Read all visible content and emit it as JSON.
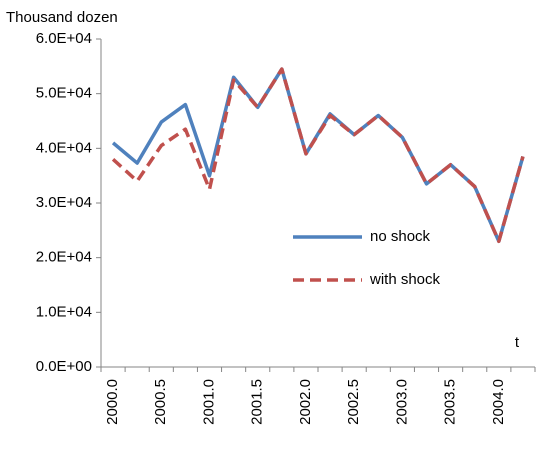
{
  "chart_data": {
    "type": "line",
    "y_label": "Thousand dozen",
    "x_label": "t",
    "categories": [
      "2000.0",
      null,
      "2000.5",
      null,
      "2001.0",
      null,
      "2001.5",
      null,
      "2002.0",
      null,
      "2002.5",
      null,
      "2003.0",
      null,
      "2003.5",
      null,
      "2004.0",
      null
    ],
    "series": [
      {
        "name": "no shock",
        "color": "#4f81bd",
        "dash": false,
        "values": [
          41000,
          37300,
          44800,
          48000,
          35000,
          53000,
          47500,
          54500,
          39000,
          46300,
          42500,
          46000,
          42000,
          33500,
          37000,
          33000,
          23000,
          38500
        ]
      },
      {
        "name": "with shock",
        "color": "#c0504d",
        "dash": true,
        "values": [
          38000,
          34000,
          40500,
          43500,
          32500,
          52500,
          47500,
          54500,
          39000,
          46000,
          42500,
          46000,
          42000,
          33500,
          37000,
          33000,
          23000,
          38500
        ]
      }
    ],
    "ylim": [
      0,
      60000
    ],
    "yticks": [
      {
        "value": 0,
        "label": "0.0E+00"
      },
      {
        "value": 10000,
        "label": "1.0E+04"
      },
      {
        "value": 20000,
        "label": "2.0E+04"
      },
      {
        "value": 30000,
        "label": "3.0E+04"
      },
      {
        "value": 40000,
        "label": "4.0E+04"
      },
      {
        "value": 50000,
        "label": "5.0E+04"
      },
      {
        "value": 60000,
        "label": "6.0E+04"
      }
    ],
    "grid": false
  }
}
